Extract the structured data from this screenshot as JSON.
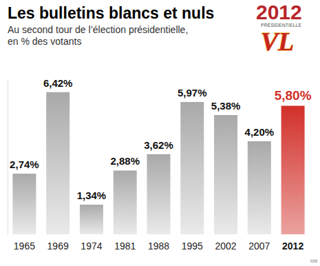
{
  "chart_data": {
    "type": "bar",
    "title": "Les bulletins blancs et nuls",
    "subtitle": "Au second tour de l’élection présidentielle,\nen % des votants",
    "annotations": [
      "2012",
      "PRÉSIDENTIELLE",
      "VL",
      "idé"
    ],
    "categories": [
      "1965",
      "1969",
      "1974",
      "1981",
      "1988",
      "1995",
      "2002",
      "2007",
      "2012"
    ],
    "values": [
      2.74,
      6.42,
      1.34,
      2.88,
      3.62,
      5.97,
      5.38,
      4.2,
      5.8
    ],
    "value_labels": [
      "2,74%",
      "6,42%",
      "1,34%",
      "2,88%",
      "3,62%",
      "5,97%",
      "5,38%",
      "4,20%",
      "5,80%"
    ],
    "colors": [
      "#a9a9a9",
      "#a9a9a9",
      "#a9a9a9",
      "#a9a9a9",
      "#a9a9a9",
      "#a9a9a9",
      "#a9a9a9",
      "#a9a9a9",
      "#d2302a"
    ],
    "ylim": [
      0,
      7
    ],
    "data_labels": true,
    "tick_labels": "x",
    "grid": false
  }
}
